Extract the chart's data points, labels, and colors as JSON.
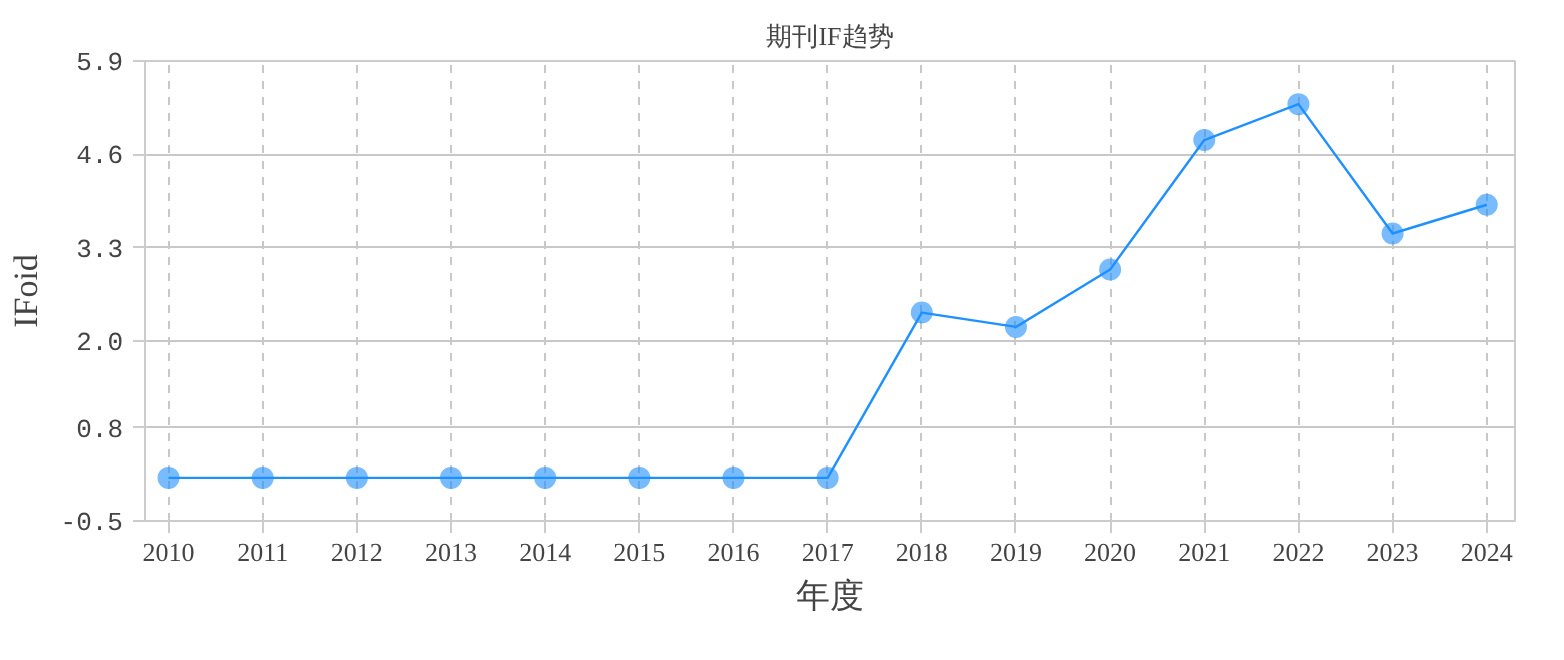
{
  "chart_data": {
    "type": "line",
    "title": "期刊IF趋势",
    "xlabel": "年度",
    "ylabel": "IFoid",
    "categories": [
      "2010",
      "2011",
      "2012",
      "2013",
      "2014",
      "2015",
      "2016",
      "2017",
      "2018",
      "2019",
      "2020",
      "2021",
      "2022",
      "2023",
      "2024"
    ],
    "series": [
      {
        "color": "#1e90ff",
        "values": [
          0.1,
          0.1,
          0.1,
          0.1,
          0.1,
          0.1,
          0.1,
          0.1,
          2.4,
          2.2,
          3.0,
          4.8,
          5.3,
          3.5,
          3.9
        ]
      }
    ],
    "ylim": [
      -0.5,
      5.9
    ],
    "yticks": [
      -0.5,
      0.8,
      {
        "value": 2,
        "label": "2.0"
      },
      3.3,
      4.6,
      5.9
    ],
    "grid": true,
    "marker": "circle",
    "line_style": "solid"
  }
}
